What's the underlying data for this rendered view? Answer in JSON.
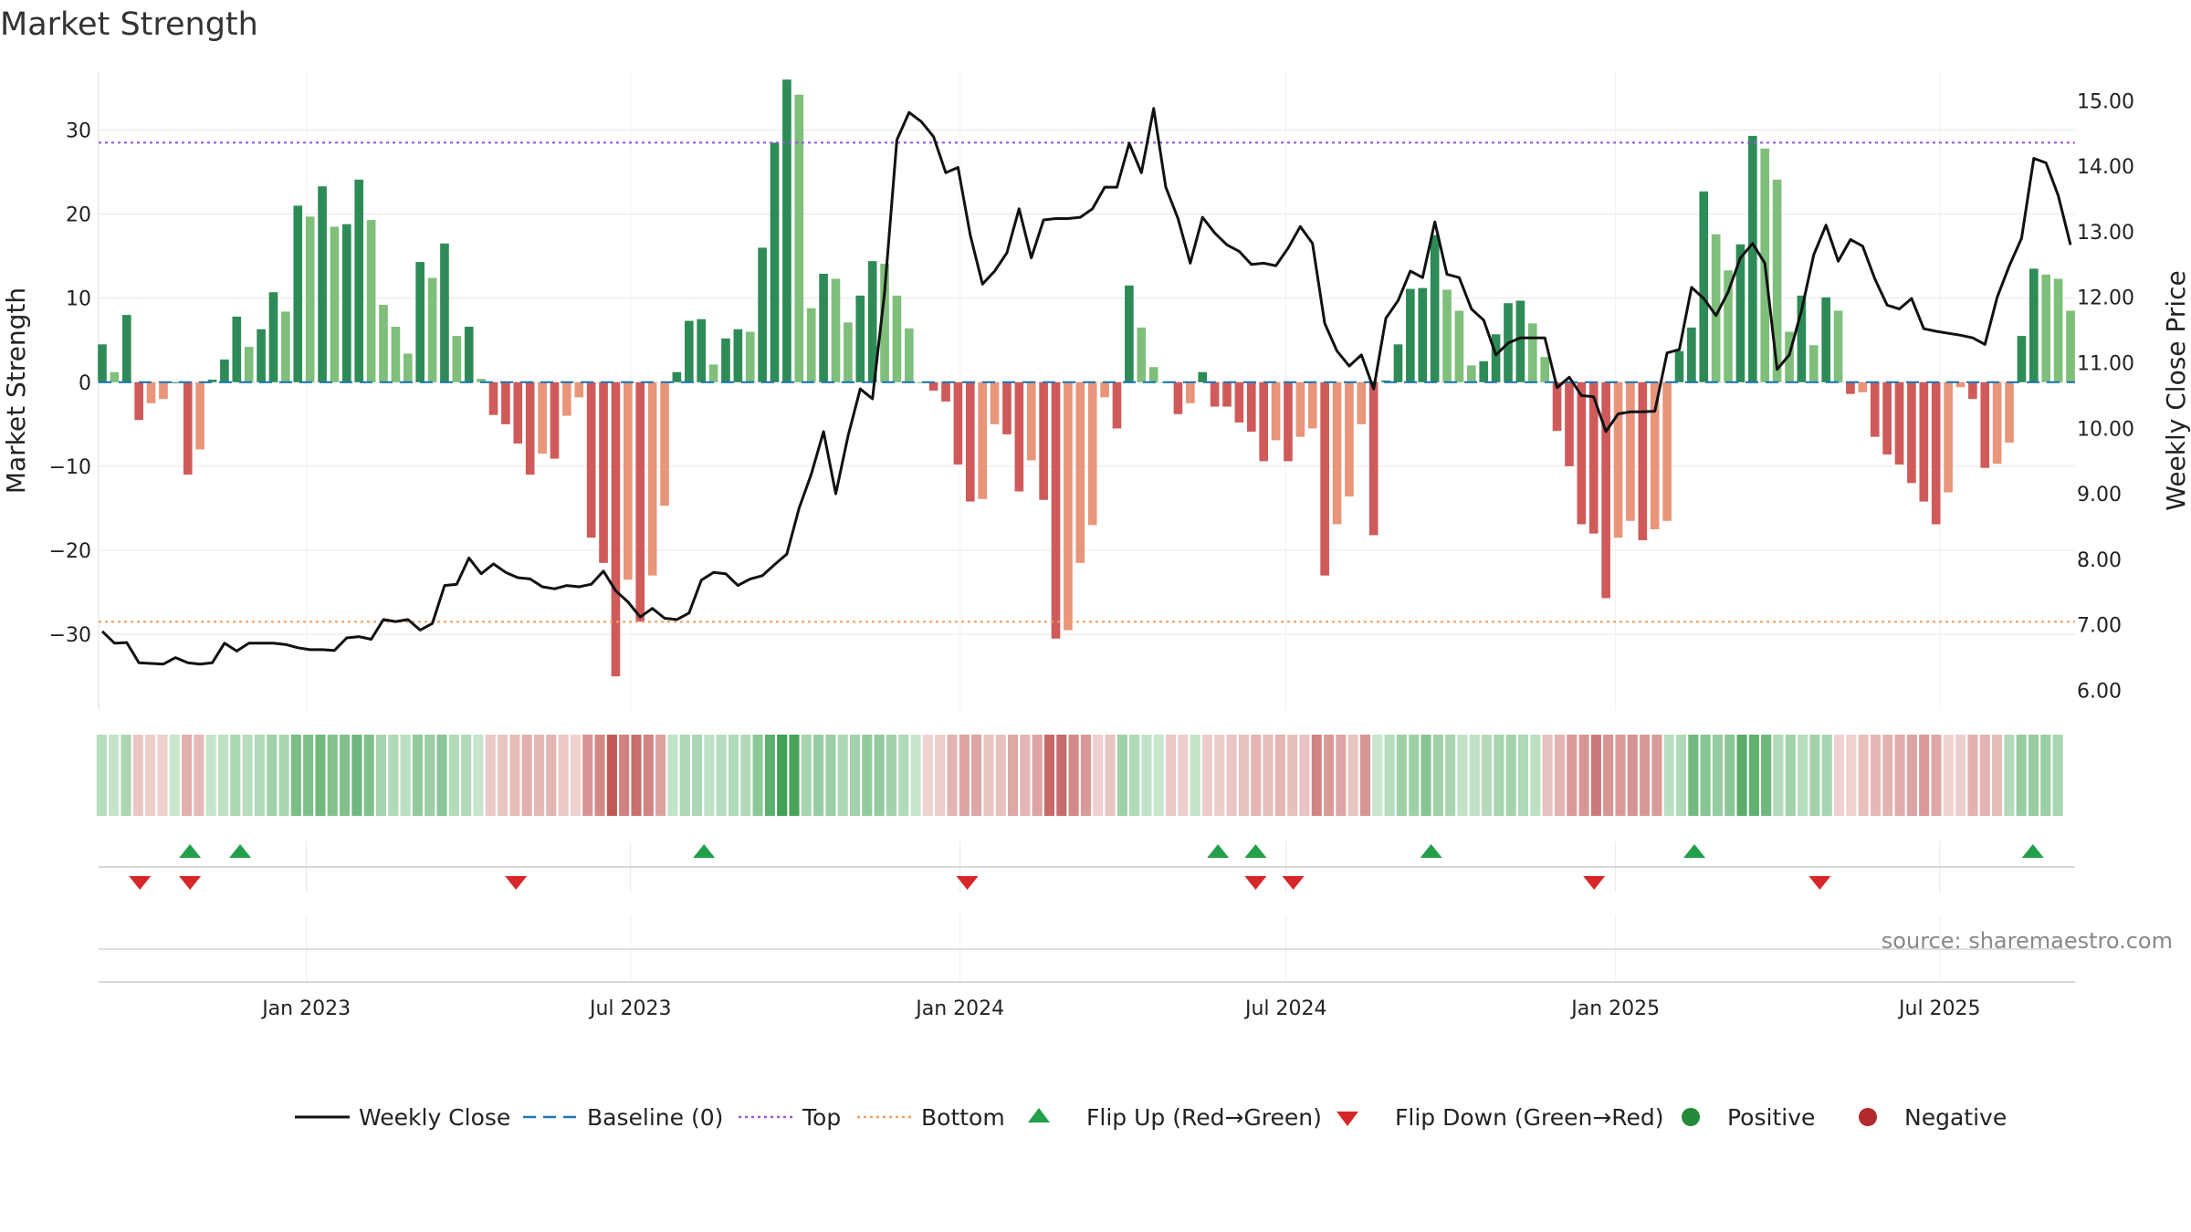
{
  "chart_data": {
    "type": "bar",
    "title": "Market Strength",
    "ylabel": "Market Strength",
    "y2label": "Weekly Close Price",
    "ylim": [
      -39,
      37
    ],
    "y2lim": [
      5.7,
      15.45
    ],
    "yticks": [
      30,
      20,
      10,
      0,
      -10,
      -20,
      -30
    ],
    "ytick_labels": [
      "30",
      "20",
      "10",
      "0",
      "−10",
      "−20",
      "−30"
    ],
    "y2ticks": [
      15,
      14,
      13,
      12,
      11,
      10,
      9,
      8,
      7,
      6
    ],
    "y2tick_labels": [
      "15.00",
      "14.00",
      "13.00",
      "12.00",
      "11.00",
      "10.00",
      "9.00",
      "8.00",
      "7.00",
      "6.00"
    ],
    "xaxis": {
      "start": "2022-09-09",
      "end": "2025-09-12",
      "ticks": [
        {
          "date": "2023-01-01",
          "label": "Jan 2023"
        },
        {
          "date": "2023-07-01",
          "label": "Jul 2023"
        },
        {
          "date": "2024-01-01",
          "label": "Jan 2024"
        },
        {
          "date": "2024-07-01",
          "label": "Jul 2024"
        },
        {
          "date": "2025-01-01",
          "label": "Jan 2025"
        },
        {
          "date": "2025-07-01",
          "label": "Jul 2025"
        }
      ]
    },
    "reference_lines": [
      {
        "name": "Baseline (0)",
        "value": 0,
        "color": "#1f77b4",
        "style": "dashed"
      },
      {
        "name": "Top",
        "value": 28.5,
        "color": "#9b59e0",
        "style": "dotted"
      },
      {
        "name": "Bottom",
        "value": -28.5,
        "color": "#f0a060",
        "style": "dotted"
      }
    ],
    "series": [
      {
        "name": "Market Strength",
        "type": "bar",
        "values": [
          4.5,
          1.2,
          8.0,
          -4.5,
          -2.5,
          -2.0,
          0,
          -11.0,
          -8.0,
          0.3,
          2.7,
          7.8,
          4.2,
          6.3,
          10.7,
          8.4,
          21.0,
          19.7,
          23.3,
          18.5,
          18.8,
          24.1,
          19.3,
          9.2,
          6.6,
          3.4,
          14.3,
          12.4,
          16.5,
          5.5,
          6.6,
          0.4,
          -3.9,
          -5.0,
          -7.3,
          -11.0,
          -8.5,
          -9.1,
          -4.0,
          -1.8,
          -18.5,
          -21.5,
          -35.0,
          -23.5,
          -28.5,
          -23.0,
          -14.7,
          1.2,
          7.3,
          7.5,
          2.1,
          5.2,
          6.3,
          6.0,
          16.0,
          28.5,
          36.0,
          34.2,
          8.8,
          12.9,
          12.3,
          7.1,
          10.3,
          14.4,
          14.1,
          10.3,
          6.4,
          0,
          -1.0,
          -2.3,
          -9.8,
          -14.2,
          -13.9,
          -5.0,
          -6.2,
          -13.0,
          -9.3,
          -14.0,
          -30.5,
          -29.5,
          -21.5,
          -17.0,
          -1.8,
          -5.5,
          11.5,
          6.5,
          1.8,
          0,
          -3.8,
          -2.5,
          1.2,
          -2.9,
          -2.9,
          -4.8,
          -5.9,
          -9.4,
          -6.9,
          -9.4,
          -6.5,
          -5.5,
          -23.0,
          -16.9,
          -13.6,
          -5.0,
          -18.2,
          0.2,
          4.5,
          11.1,
          11.2,
          17.5,
          11.0,
          8.5,
          2.0,
          2.5,
          5.7,
          9.4,
          9.7,
          7.0,
          3.0,
          -5.8,
          -10.0,
          -16.9,
          -18.0,
          -25.7,
          -18.5,
          -16.5,
          -18.8,
          -17.5,
          -16.5,
          3.7,
          6.5,
          22.7,
          17.6,
          13.3,
          16.4,
          29.3,
          27.8,
          24.1,
          6.0,
          10.3,
          4.4,
          10.1,
          8.5,
          -1.4,
          -1.2,
          -6.5,
          -8.6,
          -9.8,
          -12.0,
          -14.2,
          -16.9,
          -13.1,
          -0.6,
          -2.0,
          -10.2,
          -9.7,
          -7.2,
          5.5,
          13.5,
          12.8,
          12.3,
          8.5
        ],
        "colors": {
          "positive_strong": "#2e8b57",
          "positive_light": "#7fbf7b",
          "negative_strong": "#d05a5a",
          "negative_light": "#e8957a"
        }
      },
      {
        "name": "Weekly Close",
        "type": "line",
        "axis": "right",
        "color": "#111111",
        "values": [
          6.9,
          6.72,
          6.73,
          6.42,
          6.41,
          6.4,
          6.5,
          6.42,
          6.4,
          6.42,
          6.72,
          6.6,
          6.72,
          6.72,
          6.72,
          6.7,
          6.65,
          6.62,
          6.62,
          6.61,
          6.8,
          6.82,
          6.78,
          7.08,
          7.05,
          7.08,
          6.92,
          7.02,
          7.6,
          7.62,
          8.02,
          7.78,
          7.93,
          7.8,
          7.72,
          7.7,
          7.58,
          7.55,
          7.6,
          7.58,
          7.62,
          7.82,
          7.52,
          7.35,
          7.12,
          7.25,
          7.1,
          7.08,
          7.18,
          7.68,
          7.8,
          7.78,
          7.6,
          7.7,
          7.75,
          7.92,
          8.08,
          8.78,
          9.3,
          9.95,
          9.0,
          9.88,
          10.6,
          10.45,
          12.08,
          14.4,
          14.82,
          14.68,
          14.45,
          13.9,
          13.98,
          12.95,
          12.2,
          12.4,
          12.68,
          13.35,
          12.6,
          13.18,
          13.2,
          13.2,
          13.22,
          13.35,
          13.68,
          13.68,
          14.35,
          13.9,
          14.88,
          13.68,
          13.2,
          12.52,
          13.22,
          12.98,
          12.8,
          12.7,
          12.5,
          12.52,
          12.48,
          12.75,
          13.08,
          12.82,
          11.6,
          11.18,
          10.95,
          11.12,
          10.6,
          11.68,
          11.95,
          12.4,
          12.3,
          13.15,
          12.35,
          12.3,
          11.82,
          11.65,
          11.12,
          11.3,
          11.38,
          11.38,
          11.38,
          10.62,
          10.78,
          10.5,
          10.48,
          9.95,
          10.22,
          10.25,
          10.25,
          10.26,
          11.15,
          11.2,
          12.15,
          11.98,
          11.72,
          12.08,
          12.6,
          12.82,
          12.52,
          10.9,
          11.12,
          11.8,
          12.65,
          13.1,
          12.55,
          12.88,
          12.78,
          12.28,
          11.88,
          11.82,
          11.98,
          11.52,
          11.48,
          11.45,
          11.42,
          11.38,
          11.28,
          12.0,
          12.48,
          12.9,
          14.12,
          14.05,
          13.55,
          12.8
        ]
      }
    ],
    "strength_strip": {
      "label": "Market Strength heat strip"
    },
    "flips": {
      "up_dates": [
        "2022-10-28",
        "2022-11-25",
        "2023-08-11",
        "2024-05-24",
        "2024-06-14",
        "2024-09-20",
        "2025-02-14",
        "2025-08-22"
      ],
      "down_dates": [
        "2022-09-30",
        "2022-10-28",
        "2023-04-28",
        "2024-01-05",
        "2024-06-14",
        "2024-07-05",
        "2024-12-20",
        "2025-04-25"
      ]
    },
    "legend": [
      {
        "label": "Weekly Close",
        "type": "line-solid",
        "color": "#111111"
      },
      {
        "label": "Baseline (0)",
        "type": "line-dashed",
        "color": "#1f77b4"
      },
      {
        "label": "Top",
        "type": "line-dotted",
        "color": "#9b59e0"
      },
      {
        "label": "Bottom",
        "type": "line-dotted",
        "color": "#f0a060"
      },
      {
        "label": "Flip Up (Red→Green)",
        "type": "triangle-up",
        "color": "#22a049"
      },
      {
        "label": "Flip Down (Green→Red)",
        "type": "triangle-down",
        "color": "#d62728"
      },
      {
        "label": "Positive",
        "type": "circle",
        "color": "#238b3a"
      },
      {
        "label": "Negative",
        "type": "circle",
        "color": "#b22a2a"
      }
    ],
    "source": "source: sharemaestro.com"
  }
}
